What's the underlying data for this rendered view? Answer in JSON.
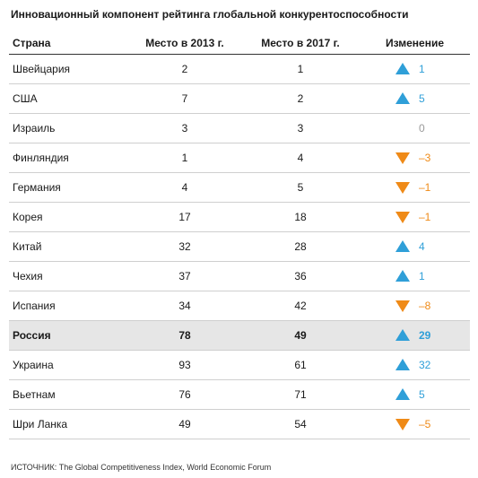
{
  "title": "Инновационный компонент рейтинга глобальной конкурентоспособности",
  "columns": {
    "country": "Страна",
    "rank2013": "Место в 2013 г.",
    "rank2017": "Место в 2017 г.",
    "change": "Изменение"
  },
  "colors": {
    "up": "#2f9fd8",
    "down": "#ef8a17",
    "zero": "#9a9a9a",
    "highlight_row": "#e6e6e6"
  },
  "rows": [
    {
      "country": "Швейцария",
      "rank2013": "2",
      "rank2017": "1",
      "change": "1",
      "direction": "up"
    },
    {
      "country": "США",
      "rank2013": "7",
      "rank2017": "2",
      "change": "5",
      "direction": "up"
    },
    {
      "country": "Израиль",
      "rank2013": "3",
      "rank2017": "3",
      "change": "0",
      "direction": "none"
    },
    {
      "country": "Финляндия",
      "rank2013": "1",
      "rank2017": "4",
      "change": "–3",
      "direction": "down"
    },
    {
      "country": "Германия",
      "rank2013": "4",
      "rank2017": "5",
      "change": "–1",
      "direction": "down"
    },
    {
      "country": "Корея",
      "rank2013": "17",
      "rank2017": "18",
      "change": "–1",
      "direction": "down"
    },
    {
      "country": "Китай",
      "rank2013": "32",
      "rank2017": "28",
      "change": "4",
      "direction": "up"
    },
    {
      "country": "Чехия",
      "rank2013": "37",
      "rank2017": "36",
      "change": "1",
      "direction": "up"
    },
    {
      "country": "Испания",
      "rank2013": "34",
      "rank2017": "42",
      "change": "–8",
      "direction": "down"
    },
    {
      "country": "Россия",
      "rank2013": "78",
      "rank2017": "49",
      "change": "29",
      "direction": "up",
      "highlighted": true
    },
    {
      "country": "Украина",
      "rank2013": "93",
      "rank2017": "61",
      "change": "32",
      "direction": "up"
    },
    {
      "country": "Вьетнам",
      "rank2013": "76",
      "rank2017": "71",
      "change": "5",
      "direction": "up"
    },
    {
      "country": "Шри Ланка",
      "rank2013": "49",
      "rank2017": "54",
      "change": "–5",
      "direction": "down"
    }
  ],
  "source": "ИСТОЧНИК: The Global Competitiveness Index, World Economic Forum"
}
